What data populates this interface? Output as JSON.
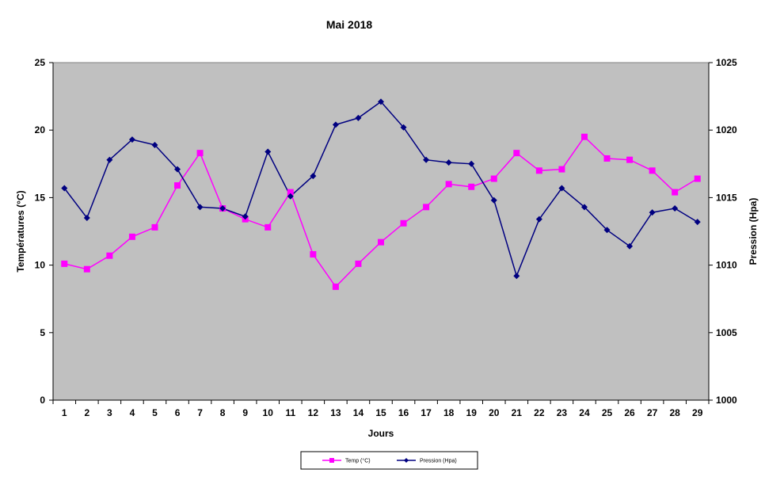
{
  "chart_data": {
    "type": "line",
    "title": "Mai 2018",
    "xlabel": "Jours",
    "ylabel_left": "Températures (°C)",
    "ylabel_right": "Pression (Hpa)",
    "ylim_left": [
      0,
      25
    ],
    "ylim_right": [
      1000,
      1025
    ],
    "yticks_left": [
      "0",
      "5",
      "10",
      "15",
      "20",
      "25"
    ],
    "yticks_right": [
      "1000",
      "1005",
      "1010",
      "1015",
      "1020",
      "1025"
    ],
    "categories": [
      "1",
      "2",
      "3",
      "4",
      "5",
      "6",
      "7",
      "8",
      "9",
      "10",
      "11",
      "12",
      "13",
      "14",
      "15",
      "16",
      "17",
      "18",
      "19",
      "20",
      "21",
      "22",
      "23",
      "24",
      "25",
      "26",
      "27",
      "28",
      "29"
    ],
    "grid": false,
    "legend_position": "bottom",
    "plot_background": "#c0c0c0",
    "series": [
      {
        "name": "Temp (°C)",
        "axis": "left",
        "color": "#ff00ff",
        "marker": "square",
        "values": [
          10.1,
          9.7,
          10.7,
          12.1,
          12.8,
          15.9,
          18.3,
          14.2,
          13.4,
          12.8,
          15.4,
          10.8,
          8.4,
          10.1,
          11.7,
          13.1,
          14.3,
          16.0,
          15.8,
          16.4,
          18.3,
          17.0,
          17.1,
          19.5,
          17.9,
          17.8,
          17.0,
          15.4,
          16.4
        ]
      },
      {
        "name": "Pression (Hpa)",
        "axis": "right",
        "color": "#000080",
        "marker": "diamond",
        "values": [
          1015.7,
          1013.5,
          1017.8,
          1019.3,
          1018.9,
          1017.1,
          1014.3,
          1014.2,
          1013.6,
          1018.4,
          1015.1,
          1016.6,
          1020.4,
          1020.9,
          1022.1,
          1020.2,
          1017.8,
          1017.6,
          1017.5,
          1014.8,
          1009.2,
          1013.4,
          1015.7,
          1014.3,
          1012.6,
          1011.4,
          1013.9,
          1014.2,
          1013.2
        ]
      }
    ]
  }
}
